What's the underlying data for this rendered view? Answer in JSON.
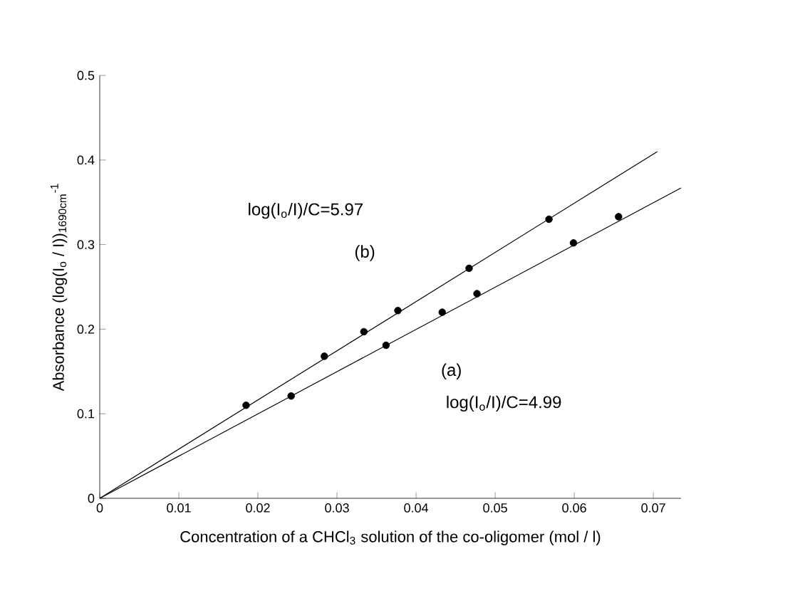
{
  "chart_data": {
    "type": "scatter",
    "xlabel": "Concentration of a CHCl$_{3}$ solution of the co-oligomer (mol / l)",
    "ylabel": "Absorbance (log(I$_{o}$ / I))$_{1690cm}$$^{-1}$",
    "xlim": [
      0,
      0.0735
    ],
    "ylim": [
      0,
      0.5
    ],
    "xticks": [
      0,
      0.01,
      0.02,
      0.03,
      0.04,
      0.05,
      0.06,
      0.07
    ],
    "yticks": [
      0,
      0.1,
      0.2,
      0.3,
      0.4,
      0.5
    ],
    "grid": false,
    "series": [
      {
        "marker": "circle",
        "color": "#000000",
        "x": [
          0.0185,
          0.0284,
          0.0334,
          0.0377,
          0.0467,
          0.0568
        ],
        "values": [
          0.11,
          0.168,
          0.197,
          0.222,
          0.272,
          0.33
        ]
      },
      {
        "marker": "circle",
        "color": "#000000",
        "x": [
          0.0242,
          0.0362,
          0.0433,
          0.0477,
          0.0599,
          0.0656
        ],
        "values": [
          0.121,
          0.181,
          0.22,
          0.242,
          0.302,
          0.333
        ]
      },
      {
        "type": "line",
        "marker": "none",
        "line_style": "solid",
        "color": "#000000",
        "x": [
          0,
          0.0705
        ],
        "values": [
          0,
          0.41
        ]
      },
      {
        "type": "line",
        "marker": "none",
        "line_style": "solid",
        "color": "#000000",
        "x": [
          0,
          0.0735
        ],
        "values": [
          0,
          0.367
        ]
      }
    ],
    "annotations": [
      "log(I$_{o}$/I)/C=5.97",
      "(b)",
      "(a)",
      "log(I$_{o}$/I)/C=4.99"
    ]
  }
}
